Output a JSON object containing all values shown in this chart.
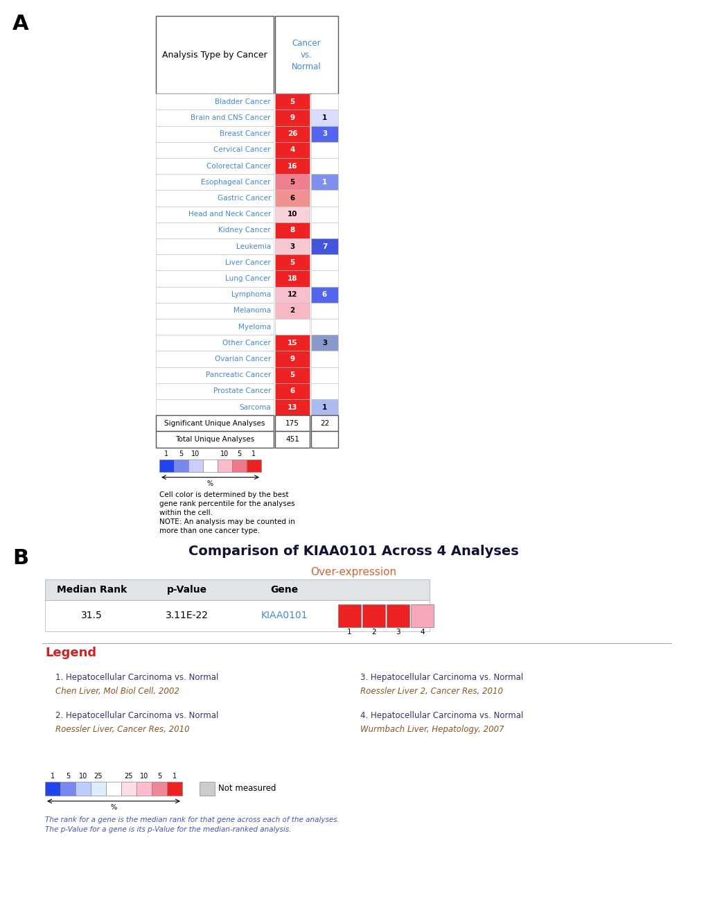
{
  "cancers": [
    "Bladder Cancer",
    "Brain and CNS Cancer",
    "Breast Cancer",
    "Cervical Cancer",
    "Colorectal Cancer",
    "Esophageal Cancer",
    "Gastric Cancer",
    "Head and Neck Cancer",
    "Kidney Cancer",
    "Leukemia",
    "Liver Cancer",
    "Lung Cancer",
    "Lymphoma",
    "Melanoma",
    "Myeloma",
    "Other Cancer",
    "Ovarian Cancer",
    "Pancreatic Cancer",
    "Prostate Cancer",
    "Sarcoma"
  ],
  "over_values": [
    5,
    9,
    26,
    4,
    16,
    5,
    6,
    10,
    8,
    3,
    5,
    18,
    12,
    2,
    0,
    15,
    9,
    5,
    6,
    13
  ],
  "under_values": [
    0,
    1,
    3,
    0,
    0,
    1,
    0,
    0,
    0,
    7,
    0,
    0,
    6,
    0,
    0,
    3,
    0,
    0,
    0,
    1
  ],
  "over_colors": [
    "#EE2222",
    "#EE2222",
    "#EE2222",
    "#EE2222",
    "#EE2222",
    "#F08090",
    "#F09090",
    "#F8D0D8",
    "#EE2222",
    "#F8C8D0",
    "#EE2222",
    "#EE2222",
    "#F8C0CC",
    "#F8B8C4",
    "#FFFFFF",
    "#EE2222",
    "#EE2222",
    "#EE2222",
    "#EE2222",
    "#EE2222"
  ],
  "under_colors": [
    "#FFFFFF",
    "#D8DCFF",
    "#5566EE",
    "#FFFFFF",
    "#FFFFFF",
    "#8090EE",
    "#FFFFFF",
    "#FFFFFF",
    "#FFFFFF",
    "#4455DD",
    "#FFFFFF",
    "#FFFFFF",
    "#5566EE",
    "#FFFFFF",
    "#FFFFFF",
    "#8899CC",
    "#FFFFFF",
    "#FFFFFF",
    "#FFFFFF",
    "#AABBEE"
  ],
  "over_text_white": [
    true,
    true,
    true,
    true,
    true,
    false,
    false,
    false,
    true,
    false,
    true,
    true,
    false,
    false,
    false,
    true,
    true,
    true,
    true,
    true
  ],
  "under_text_white": [
    false,
    false,
    true,
    false,
    false,
    true,
    false,
    false,
    false,
    true,
    false,
    false,
    true,
    false,
    false,
    false,
    false,
    false,
    false,
    false
  ],
  "sig_over": 175,
  "sig_under": 22,
  "total": 451,
  "panel_b_title": "Comparison of KIAA0101 Across 4 Analyses",
  "panel_b_subtitle": "Over-expression",
  "median_rank": "31.5",
  "p_value": "3.11E-22",
  "gene_name": "KIAA0101",
  "analysis_colors": [
    "#EE2222",
    "#EE2222",
    "#EE2222",
    "#F8A8B8"
  ],
  "legend_items": [
    [
      "1. Hepatocellular Carcinoma vs. Normal",
      "Chen Liver, Mol Biol Cell, 2002"
    ],
    [
      "2. Hepatocellular Carcinoma vs. Normal",
      "Roessler Liver, Cancer Res, 2010"
    ],
    [
      "3. Hepatocellular Carcinoma vs. Normal",
      "Roessler Liver 2, Cancer Res, 2010"
    ],
    [
      "4. Hepatocellular Carcinoma vs. Normal",
      "Wurmbach Liver, Hepatology, 2007"
    ]
  ],
  "note_text": "Cell color is determined by the best\ngene rank percentile for the analyses\nwithin the cell.\nNOTE: An analysis may be counted in\nmore than one cancer type.",
  "bottom_note": "The rank for a gene is the median rank for that gene across each of the analyses.\nThe p-Value for a gene is its p-Value for the median-ranked analysis."
}
